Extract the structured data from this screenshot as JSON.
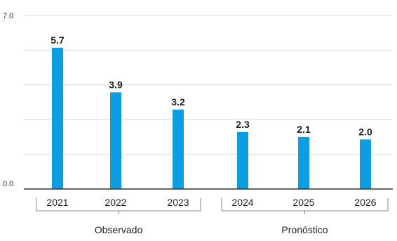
{
  "chart_data": {
    "type": "bar",
    "categories": [
      "2021",
      "2022",
      "2023",
      "2024",
      "2025",
      "2026"
    ],
    "values": [
      5.7,
      3.9,
      3.2,
      2.3,
      2.1,
      2.0
    ],
    "value_labels": [
      "5.7",
      "3.9",
      "3.2",
      "2.3",
      "2.1",
      "2.0"
    ],
    "ylim": [
      0,
      7
    ],
    "y_tick_labels": [
      {
        "value": 0,
        "label": "0.0"
      },
      {
        "value": 7,
        "label": "7.0"
      }
    ],
    "gridline_values": [
      1.4,
      2.8,
      4.2,
      5.6,
      7.0
    ],
    "groups": [
      {
        "label": "Observado",
        "categories": [
          "2021",
          "2022",
          "2023"
        ]
      },
      {
        "label": "Pronóstico",
        "categories": [
          "2024",
          "2025",
          "2026"
        ]
      }
    ],
    "bar_color": "#0c9ee0",
    "grid": true,
    "title": "",
    "xlabel": "",
    "ylabel": ""
  }
}
